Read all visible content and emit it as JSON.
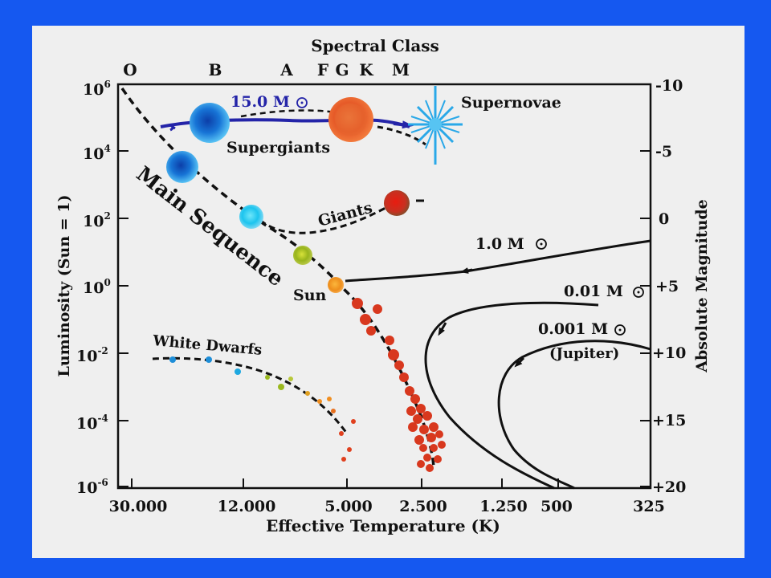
{
  "title": "Spectral Class",
  "spectral_classes": [
    "O",
    "B",
    "A",
    "F",
    "G",
    "K",
    "M"
  ],
  "x_axis": {
    "label": "Effective Temperature (K)",
    "ticks": [
      "30.000",
      "12.000",
      "5.000",
      "2.500",
      "1.250",
      "500",
      "325"
    ]
  },
  "y_left": {
    "label": "Luminosity (Sun = 1)",
    "ticks": [
      {
        "base": "10",
        "exp": "6"
      },
      {
        "base": "10",
        "exp": "4"
      },
      {
        "base": "10",
        "exp": "2"
      },
      {
        "base": "10",
        "exp": "0"
      },
      {
        "base": "10",
        "exp": "-2"
      },
      {
        "base": "10",
        "exp": "-4"
      },
      {
        "base": "10",
        "exp": "-6"
      }
    ]
  },
  "y_right": {
    "label": "Absolute Magnitude",
    "ticks": [
      "-10",
      "-5",
      "0",
      "+5",
      "+10",
      "+15",
      "+20"
    ]
  },
  "labels": {
    "supernovae": "Supernovae",
    "supergiants": "Supergiants",
    "giants": "Giants",
    "main_sequence": "Main Sequence",
    "sun": "Sun",
    "white_dwarfs": "White Dwarfs",
    "track_15": "15.0 M",
    "track_1": "1.0 M",
    "track_001": "0.01 M",
    "track_0001": "0.001 M",
    "jupiter": "(Jupiter)"
  },
  "colors": {
    "background": "#1558f0",
    "panel": "#efefef",
    "massive_track": "#2424a8",
    "supergiant_blue": "#1a78d8",
    "supergiant_red": "#e8532a",
    "giant_red": "#d8281e",
    "main_sequence_cyan": "#19c8f0",
    "main_sequence_green": "#9ab81e",
    "sun": "#f0941e",
    "red_dwarf": "#d8301e"
  }
}
